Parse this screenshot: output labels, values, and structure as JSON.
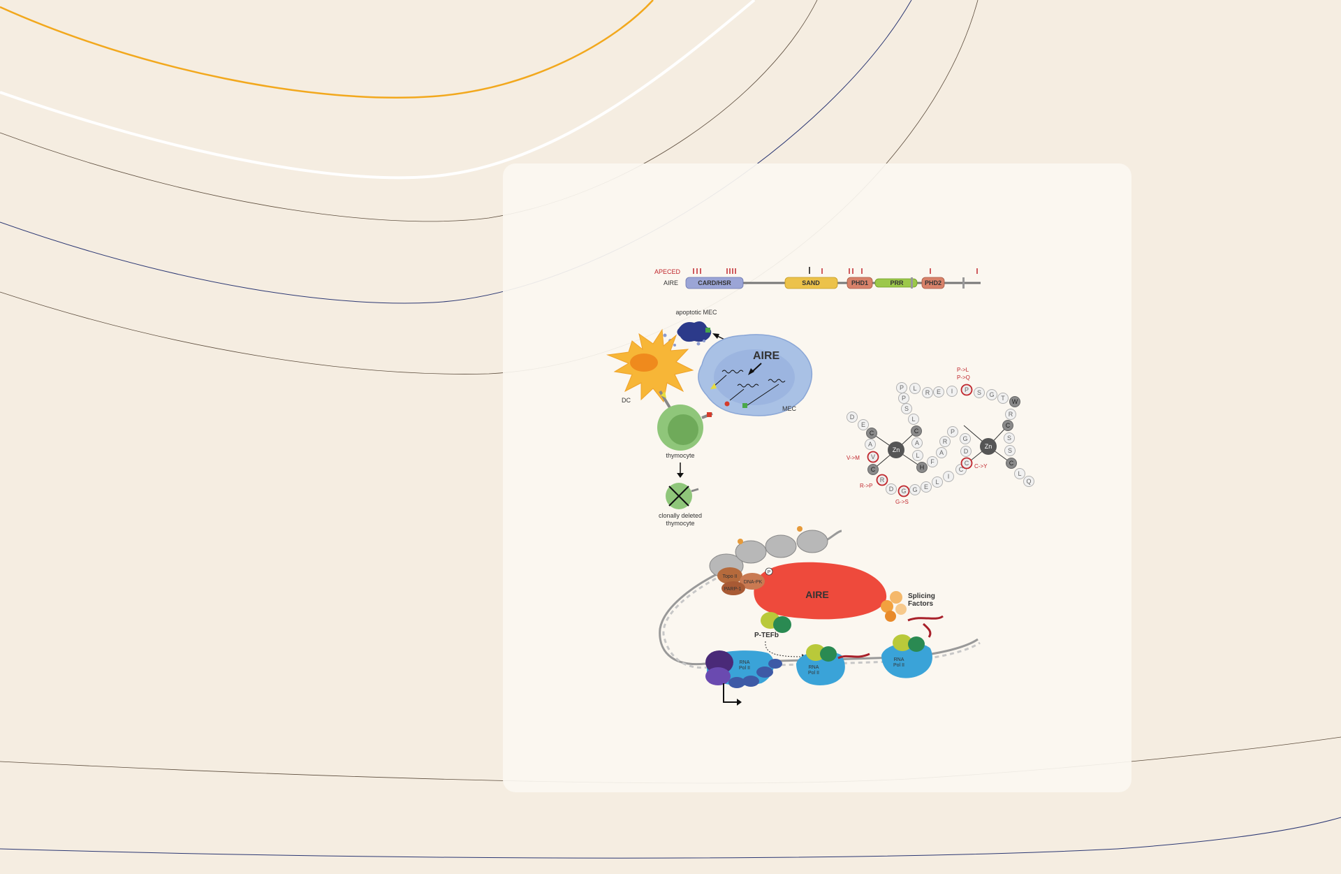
{
  "domain_strip": {
    "mutation_track_label": "APECED",
    "protein_label": "AIRE",
    "domains": [
      "CARD/HSR",
      "SAND",
      "PHD1",
      "PRR",
      "PHD2"
    ]
  },
  "cell_panel": {
    "apoptotic_label": "apoptotic MEC",
    "aire_label": "AIRE",
    "dc_label": "DC",
    "mec_label": "MEC",
    "thymocyte_label": "thymocyte",
    "deleted_label_line1": "clonally deleted",
    "deleted_label_line2": "thymocyte"
  },
  "phd_panel": {
    "zn_labels": [
      "Zn",
      "Zn"
    ],
    "mutations": [
      "P->L",
      "P->Q",
      "V->M",
      "R->P",
      "G->S",
      "C->Y"
    ],
    "residues": [
      "D",
      "E",
      "C",
      "A",
      "V",
      "C",
      "R",
      "D",
      "G",
      "G",
      "E",
      "L",
      "I",
      "C",
      "C",
      "D",
      "G",
      "P",
      "R",
      "A",
      "F",
      "H",
      "L",
      "A",
      "C",
      "L",
      "S",
      "P",
      "P",
      "L",
      "R",
      "E",
      "I",
      "P",
      "S",
      "G",
      "T",
      "W",
      "C",
      "R",
      "S",
      "S",
      "C",
      "L",
      "Q",
      "C",
      "Zn"
    ]
  },
  "transcription_panel": {
    "aire_label": "AIRE",
    "topo_label": "Topo II",
    "dnapk_label": "DNA-PK",
    "parp_label": "PARP-1",
    "splicing_line1": "Splicing",
    "splicing_line2": "Factors",
    "ptefb_label": "P-TEFb",
    "polii_line1": "RNA",
    "polii_line2": "Pol II",
    "p_label": "P"
  },
  "colors": {
    "background": "#f5ede1",
    "card": "#fbf7f1",
    "orange_line": "#f2a81d",
    "navy_line": "#2a3672",
    "aire_red": "#ee4a3c",
    "mutation_red": "#c0272d"
  }
}
